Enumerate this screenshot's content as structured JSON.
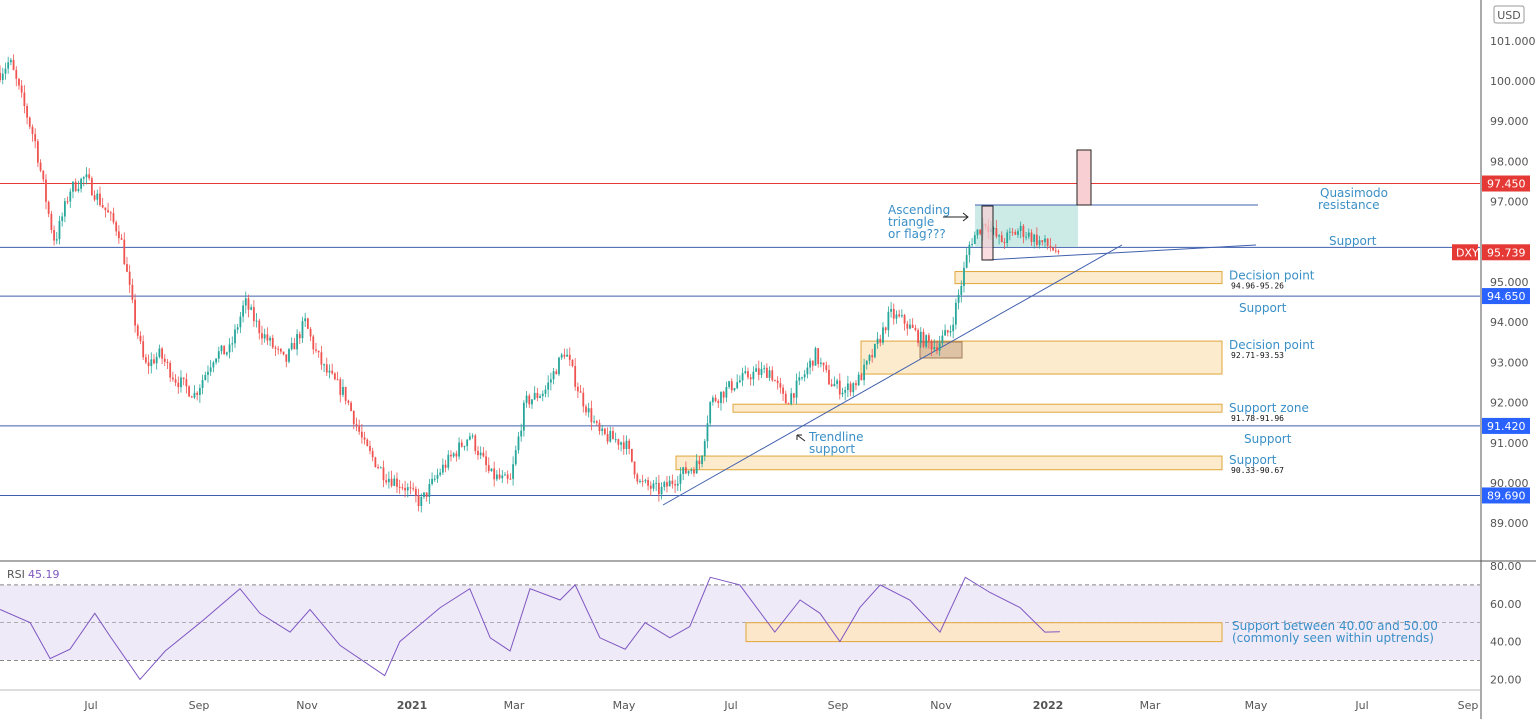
{
  "currency_label": "USD",
  "symbol": "DXY",
  "last_price": "95.739",
  "colors": {
    "up": "#26a69a",
    "down": "#ef5350",
    "level_blue": "#2962ff",
    "level_red": "#e53935",
    "zone_fill": "#fde7c4",
    "zone_border": "#e0a63a",
    "text_blue": "#3a8fc7",
    "rsi_line": "#7e57c2",
    "rsi_band": "#efeaf8"
  },
  "chart_data": [
    {
      "type": "candlestick",
      "title": "DXY",
      "x_unit": "months since Jul 2020",
      "ylim": [
        88.4,
        101.8
      ],
      "y_ticks": [
        "101.000",
        "100.000",
        "99.000",
        "98.000",
        "97.000",
        "95.000",
        "94.000",
        "93.000",
        "92.000",
        "91.000",
        "90.000",
        "89.000"
      ],
      "y_tick_values": [
        101,
        100,
        99,
        98,
        97,
        95,
        94,
        93,
        92,
        91,
        90,
        89
      ],
      "x_ticks": [
        "Jul",
        "Sep",
        "Nov",
        "2021",
        "Mar",
        "May",
        "Jul",
        "Sep",
        "Nov",
        "2022",
        "Mar",
        "May",
        "Jul",
        "Sep"
      ],
      "close_path": [
        [
          -1.69,
          100.2
        ],
        [
          -1.51,
          100.5
        ],
        [
          -1.32,
          99.7
        ],
        [
          -1.04,
          98.5
        ],
        [
          -0.76,
          96.5
        ],
        [
          -0.67,
          96.0
        ],
        [
          -0.39,
          97.3
        ],
        [
          -0.11,
          97.6
        ],
        [
          0.17,
          97.0
        ],
        [
          0.54,
          96.2
        ],
        [
          0.82,
          94.0
        ],
        [
          1.0,
          92.9
        ],
        [
          1.28,
          93.2
        ],
        [
          1.56,
          92.6
        ],
        [
          1.93,
          92.2
        ],
        [
          2.3,
          93.2
        ],
        [
          2.58,
          93.3
        ],
        [
          2.86,
          94.5
        ],
        [
          3.14,
          93.8
        ],
        [
          3.61,
          93.0
        ],
        [
          3.98,
          94.0
        ],
        [
          4.16,
          93.3
        ],
        [
          4.35,
          92.8
        ],
        [
          4.72,
          92.2
        ],
        [
          5.09,
          90.9
        ],
        [
          5.46,
          90.2
        ],
        [
          5.84,
          89.9
        ],
        [
          6.12,
          89.5
        ],
        [
          6.49,
          90.3
        ],
        [
          7.04,
          91.2
        ],
        [
          7.42,
          90.2
        ],
        [
          7.79,
          90.0
        ],
        [
          8.07,
          92.0
        ],
        [
          8.44,
          92.3
        ],
        [
          8.81,
          93.3
        ],
        [
          9.09,
          92.2
        ],
        [
          9.46,
          91.2
        ],
        [
          9.93,
          91.0
        ],
        [
          10.2,
          90.0
        ],
        [
          10.58,
          89.8
        ],
        [
          10.95,
          90.2
        ],
        [
          11.32,
          90.5
        ],
        [
          11.51,
          92.0
        ],
        [
          11.88,
          92.4
        ],
        [
          12.25,
          92.7
        ],
        [
          12.62,
          92.8
        ],
        [
          12.9,
          92.0
        ],
        [
          13.18,
          92.5
        ],
        [
          13.46,
          93.2
        ],
        [
          13.74,
          92.5
        ],
        [
          14.01,
          92.3
        ],
        [
          14.29,
          92.6
        ],
        [
          14.57,
          93.3
        ],
        [
          14.85,
          94.2
        ],
        [
          15.13,
          94.0
        ],
        [
          15.41,
          93.6
        ],
        [
          15.69,
          93.4
        ],
        [
          15.97,
          93.8
        ],
        [
          16.15,
          94.8
        ],
        [
          16.34,
          96.0
        ],
        [
          16.62,
          96.5
        ],
        [
          16.9,
          96.0
        ],
        [
          17.27,
          96.3
        ],
        [
          17.64,
          96.0
        ],
        [
          18.01,
          95.74
        ]
      ],
      "levels": [
        {
          "price": 97.45,
          "label": "97.450",
          "color": "red"
        },
        {
          "price": 95.86,
          "label": "Support",
          "color": "blue"
        },
        {
          "price": 94.65,
          "label": "94.650",
          "color": "blue"
        },
        {
          "price": 91.42,
          "label": "91.420",
          "color": "blue"
        },
        {
          "price": 89.69,
          "label": "89.690",
          "color": "blue"
        }
      ],
      "zones": [
        {
          "low": 94.96,
          "high": 95.26,
          "title": "Decision point",
          "range": "94.96-95.26"
        },
        {
          "low": 92.71,
          "high": 93.53,
          "title": "Decision point",
          "range": "92.71-93.53"
        },
        {
          "low": 91.78,
          "high": 91.96,
          "title": "Support zone",
          "range": "91.78-91.96"
        },
        {
          "low": 90.33,
          "high": 90.67,
          "title": "Support",
          "range": "90.33-90.67"
        }
      ],
      "annotations": {
        "quasimodo": [
          "Quasimodo",
          "resistance"
        ],
        "support_upper": "Support",
        "support_mid": "Support",
        "support_low": "Support",
        "triangle": [
          "Ascending",
          "triangle",
          "or flag???"
        ],
        "trendline": [
          "Trendline",
          "support"
        ]
      }
    },
    {
      "type": "line",
      "title": "RSI",
      "value_label": "45.19",
      "ylim": [
        10,
        82
      ],
      "y_ticks": [
        "80.00",
        "60.00",
        "40.00",
        "20.00"
      ],
      "y_tick_values": [
        80,
        60,
        40,
        20
      ],
      "bands": [
        30,
        50,
        70
      ],
      "series": [
        [
          -1.69,
          57
        ],
        [
          -1.13,
          50
        ],
        [
          -0.76,
          31
        ],
        [
          -0.39,
          36
        ],
        [
          0.07,
          55
        ],
        [
          0.35,
          43
        ],
        [
          0.91,
          20
        ],
        [
          1.38,
          35
        ],
        [
          2.03,
          50
        ],
        [
          2.77,
          68
        ],
        [
          3.14,
          55
        ],
        [
          3.7,
          45
        ],
        [
          4.07,
          57
        ],
        [
          4.63,
          38
        ],
        [
          5.46,
          22
        ],
        [
          5.74,
          40
        ],
        [
          6.49,
          58
        ],
        [
          7.04,
          68
        ],
        [
          7.42,
          42
        ],
        [
          7.79,
          35
        ],
        [
          8.16,
          68
        ],
        [
          8.72,
          62
        ],
        [
          9.0,
          70
        ],
        [
          9.46,
          42
        ],
        [
          9.93,
          36
        ],
        [
          10.3,
          50
        ],
        [
          10.76,
          42
        ],
        [
          11.13,
          48
        ],
        [
          11.51,
          74
        ],
        [
          12.06,
          70
        ],
        [
          12.71,
          45
        ],
        [
          13.18,
          62
        ],
        [
          13.55,
          55
        ],
        [
          13.92,
          40
        ],
        [
          14.29,
          58
        ],
        [
          14.67,
          70
        ],
        [
          15.22,
          62
        ],
        [
          15.78,
          45
        ],
        [
          16.25,
          74
        ],
        [
          16.71,
          66
        ],
        [
          17.27,
          58
        ],
        [
          17.73,
          45
        ],
        [
          18.01,
          45.19
        ]
      ],
      "annotation": [
        "Support between 40.00 and 50.00",
        "(commonly seen within uptrends)"
      ]
    }
  ]
}
